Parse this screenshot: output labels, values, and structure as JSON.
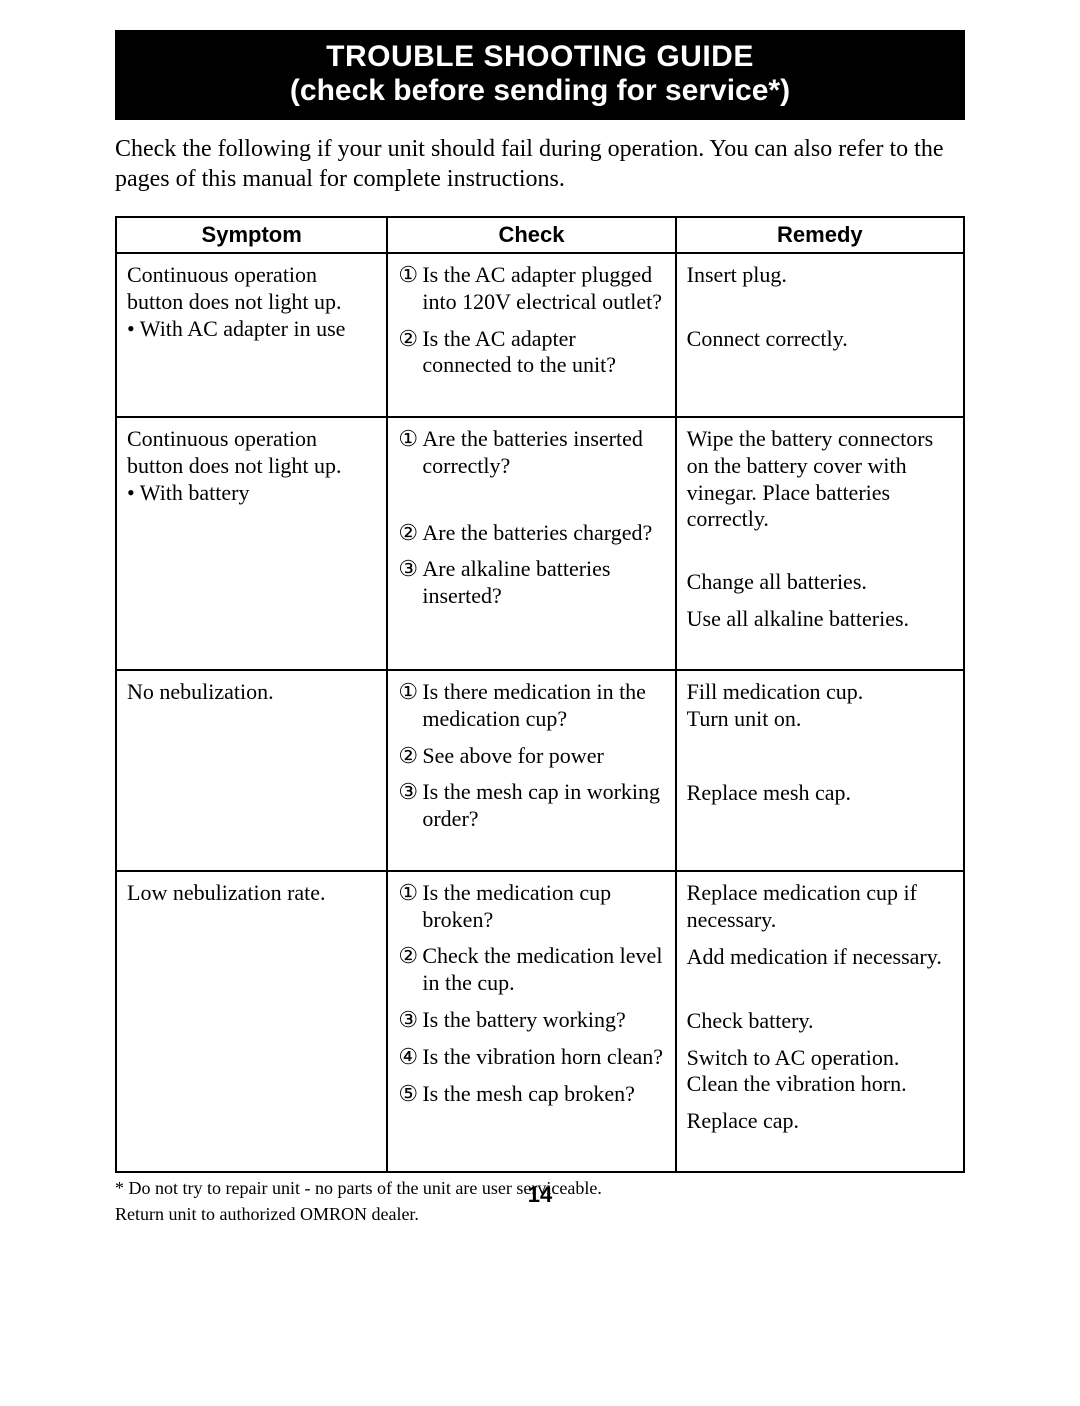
{
  "banner": {
    "line1": "TROUBLE SHOOTING GUIDE",
    "line2": "(check before sending for service*)"
  },
  "intro": "Check the following if your unit should fail during operation. You can also refer to the pages of this manual for complete instructions.",
  "columns": {
    "symptom": "Symptom",
    "check": "Check",
    "remedy": "Remedy"
  },
  "circled": {
    "1": "①",
    "2": "②",
    "3": "③",
    "4": "④",
    "5": "⑤"
  },
  "rows": [
    {
      "symptom": "Continuous operation button does not light up.\n• With AC adapter in use",
      "checks": [
        {
          "n": "1",
          "text": "Is the AC adapter plugged into 120V electrical outlet?"
        },
        {
          "n": "2",
          "text": "Is the AC adapter connected to the unit?"
        }
      ],
      "remedies": [
        "Insert plug.",
        "Connect correctly."
      ],
      "remedy_align_to_check": true
    },
    {
      "symptom": "Continuous operation button does not light up.\n• With battery",
      "checks": [
        {
          "n": "1",
          "text": "Are the batteries inserted correctly?"
        },
        {
          "n": "2",
          "text": "Are the batteries charged?"
        },
        {
          "n": "3",
          "text": "Are alkaline batteries inserted?"
        }
      ],
      "remedies": [
        "Wipe the battery connectors on the battery cover with vinegar. Place batteries correctly.",
        "Change all batteries.",
        "Use all alkaline batteries."
      ],
      "remedy_align_to_check": true,
      "gap_after_first": true
    },
    {
      "symptom": "No nebulization.",
      "checks": [
        {
          "n": "1",
          "text": "Is there medication in the medication cup?"
        },
        {
          "n": "2",
          "text": "See above for power"
        },
        {
          "n": "3",
          "text": "Is the mesh cap in working order?"
        }
      ],
      "remedies": [
        "Fill medication cup.\nTurn unit on.",
        "",
        "Replace mesh cap."
      ],
      "remedy_align_to_check": true
    },
    {
      "symptom": "Low nebulization rate.",
      "checks": [
        {
          "n": "1",
          "text": "Is the medication cup broken?"
        },
        {
          "n": "2",
          "text": "Check the medication level in the cup."
        },
        {
          "n": "3",
          "text": "Is the battery working?"
        },
        {
          "n": "4",
          "text": "Is the vibration horn clean?"
        },
        {
          "n": "5",
          "text": "Is the mesh cap broken?"
        }
      ],
      "remedies": [
        "Replace medication cup if necessary.",
        "Add medication if necessary.",
        "Check battery.",
        "Switch to AC operation. Clean the vibration horn.",
        "Replace cap."
      ],
      "remedy_align_to_check": true
    }
  ],
  "footnote": {
    "l1": "* Do not try to repair unit - no parts of the unit are user serviceable.",
    "l2": "Return unit to authorized OMRON dealer."
  },
  "page_number": "14",
  "style": {
    "background_color": "#ffffff",
    "banner_bg": "#000000",
    "banner_fg": "#ffffff",
    "text_color": "#000000",
    "border_color": "#000000",
    "body_font": "Times New Roman",
    "heading_font": "Arial Black / Futura",
    "banner_fontsize_pt": 22,
    "body_fontsize_pt": 16,
    "footnote_fontsize_pt": 13
  }
}
